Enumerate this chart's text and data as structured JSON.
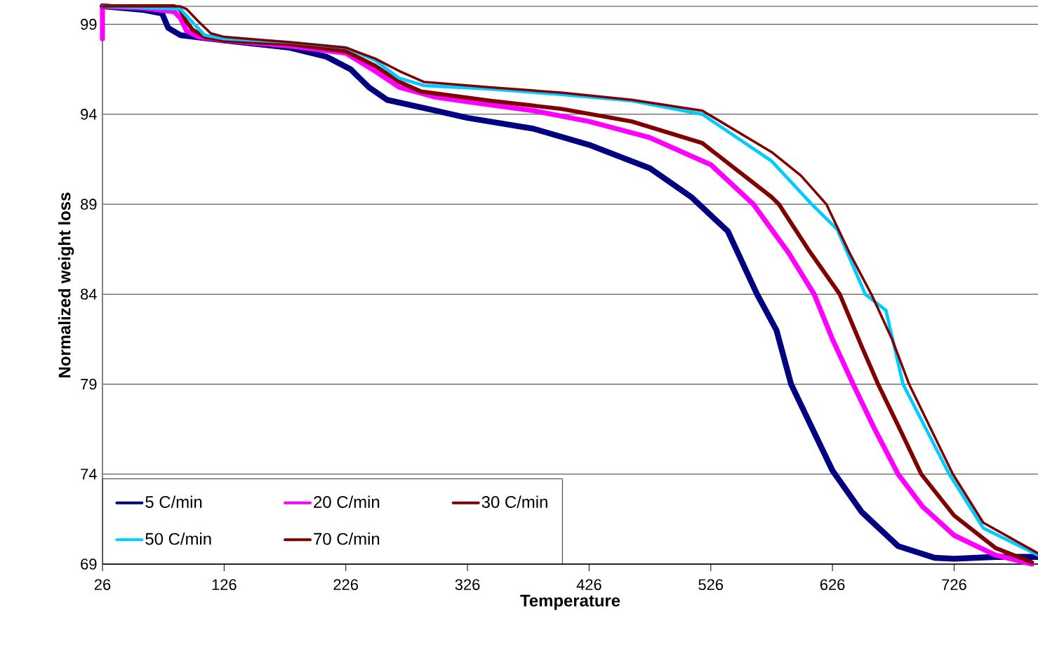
{
  "chart_data": {
    "type": "line",
    "xlabel": "Temperature",
    "ylabel": "Normalized weight loss",
    "xlim": [
      26,
      795
    ],
    "ylim": [
      69,
      100
    ],
    "xticks": [
      26,
      126,
      226,
      326,
      426,
      526,
      626,
      726
    ],
    "yticks": [
      69,
      74,
      79,
      84,
      89,
      94,
      99
    ],
    "grid": "y",
    "legend": "bottom left",
    "series": [
      {
        "name": "5 C/min",
        "color": "#000080",
        "x": [
          26,
          60,
          75,
          80,
          90,
          126,
          180,
          210,
          230,
          245,
          260,
          300,
          326,
          380,
          426,
          476,
          510,
          540,
          564,
          580,
          592,
          626,
          650,
          680,
          710,
          726,
          760,
          795
        ],
        "values": [
          100,
          99.8,
          99.6,
          98.8,
          98.4,
          98.1,
          97.7,
          97.2,
          96.5,
          95.5,
          94.8,
          94.2,
          93.8,
          93.2,
          92.3,
          91.0,
          89.4,
          87.5,
          84.0,
          82.0,
          79.0,
          74.2,
          71.9,
          70.0,
          69.35,
          69.3,
          69.4,
          69.4
        ]
      },
      {
        "name": "20 C/min",
        "color": "#ff00ff",
        "x": [
          26,
          26,
          60,
          85,
          90,
          95,
          105,
          126,
          180,
          226,
          250,
          270,
          300,
          326,
          380,
          426,
          476,
          526,
          561,
          590,
          611,
          626,
          643,
          660,
          680,
          700,
          726,
          760,
          790
        ],
        "values": [
          98.2,
          100,
          99.9,
          99.7,
          99.35,
          98.65,
          98.3,
          98.1,
          97.8,
          97.4,
          96.4,
          95.5,
          94.95,
          94.7,
          94.2,
          93.6,
          92.7,
          91.2,
          89.0,
          86.3,
          84.0,
          81.5,
          79.0,
          76.6,
          74.0,
          72.2,
          70.6,
          69.5,
          69.0
        ]
      },
      {
        "name": "30 C/min",
        "color": "#800000",
        "x": [
          26,
          85,
          90,
          95,
          100,
          110,
          126,
          180,
          226,
          250,
          270,
          288,
          345,
          403,
          461,
          519,
          576,
          582,
          606,
          632,
          650,
          663.5,
          680,
          699,
          726,
          760,
          790
        ],
        "values": [
          100,
          100,
          99.8,
          99.15,
          98.7,
          98.3,
          98.1,
          97.9,
          97.5,
          96.7,
          95.8,
          95.26,
          94.75,
          94.3,
          93.6,
          92.4,
          89.4,
          89.0,
          86.5,
          84.0,
          81.1,
          79.0,
          76.7,
          74.0,
          71.7,
          69.9,
          69.1
        ]
      },
      {
        "name": "50 C/min",
        "color": "#00ccff",
        "x": [
          26,
          90,
          101.5,
          110,
          126,
          180,
          226,
          250,
          270,
          290,
          345,
          403,
          461,
          519,
          576,
          609,
          630,
          653,
          670,
          684,
          722,
          750,
          795
        ],
        "values": [
          100,
          99.85,
          99.0,
          98.4,
          98.2,
          98.0,
          97.7,
          97.0,
          96.0,
          95.6,
          95.4,
          95.1,
          94.75,
          94.0,
          91.4,
          89.0,
          87.6,
          84.0,
          83.1,
          79.0,
          74.0,
          71.0,
          69.5
        ]
      },
      {
        "name": "70 C/min",
        "color": "#800000",
        "x": [
          26,
          90,
          95,
          100,
          105,
          115,
          126,
          180,
          226,
          250,
          270,
          290,
          345,
          403,
          461,
          519,
          576,
          600,
          621,
          640,
          658,
          675,
          689,
          725,
          750,
          795
        ],
        "values": [
          100,
          100,
          99.85,
          99.5,
          99.15,
          98.5,
          98.3,
          98.0,
          97.7,
          97.1,
          96.4,
          95.8,
          95.5,
          95.2,
          94.8,
          94.2,
          91.9,
          90.6,
          89.0,
          86.3,
          84.0,
          81.5,
          79.0,
          74.0,
          71.3,
          69.6
        ]
      }
    ]
  }
}
